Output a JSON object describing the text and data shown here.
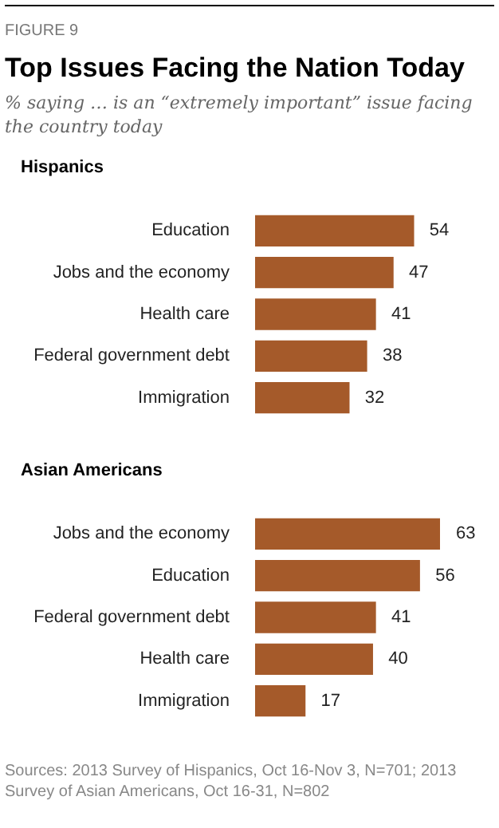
{
  "chart_data": [
    {
      "type": "other",
      "title": "Top Issues Facing the Nation Today",
      "subtitle": "% saying … is an “extremely important” issue facing the country today",
      "annotations": [
        "FIGURE 9"
      ]
    },
    {
      "type": "bar",
      "orientation": "horizontal",
      "title": "Hispanics",
      "categories": [
        "Education",
        "Jobs and the economy",
        "Health care",
        "Federal government debt",
        "Immigration"
      ],
      "values": [
        54,
        47,
        41,
        38,
        32
      ],
      "color": "#a55a2a",
      "data_labels": true,
      "tick_labels": "y"
    },
    {
      "type": "bar",
      "orientation": "horizontal",
      "title": "Asian Americans",
      "categories": [
        "Jobs and the economy",
        "Education",
        "Federal government debt",
        "Health care",
        "Immigration"
      ],
      "values": [
        63,
        56,
        41,
        40,
        17
      ],
      "color": "#a55a2a",
      "data_labels": true,
      "tick_labels": "y",
      "annotations": [
        "Sources: 2013 Survey of Hispanics, Oct 16-Nov 3, N=701; 2013 Survey of Asian Americans, Oct 16-31, N=802"
      ]
    }
  ]
}
